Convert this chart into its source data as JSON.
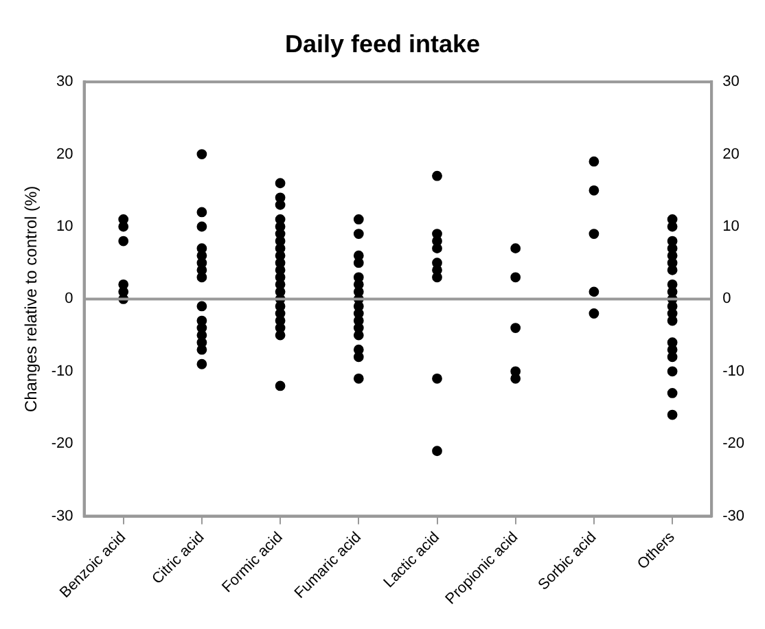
{
  "chart_data": {
    "type": "scatter",
    "title": "Daily feed intake",
    "ylabel": "Changes relative to control (%)",
    "categories": [
      "Benzoic acid",
      "Citric acid",
      "Formic acid",
      "Fumaric acid",
      "Lactic acid",
      "Propionic acid",
      "Sorbic acid",
      "Others"
    ],
    "series": [
      {
        "color": "#000000",
        "x": [
          "Benzoic acid",
          "Benzoic acid",
          "Benzoic acid",
          "Benzoic acid",
          "Benzoic acid",
          "Benzoic acid",
          "Citric acid",
          "Citric acid",
          "Citric acid",
          "Citric acid",
          "Citric acid",
          "Citric acid",
          "Citric acid",
          "Citric acid",
          "Citric acid",
          "Citric acid",
          "Citric acid",
          "Citric acid",
          "Citric acid",
          "Citric acid",
          "Citric acid",
          "Formic acid",
          "Formic acid",
          "Formic acid",
          "Formic acid",
          "Formic acid",
          "Formic acid",
          "Formic acid",
          "Formic acid",
          "Formic acid",
          "Formic acid",
          "Formic acid",
          "Formic acid",
          "Formic acid",
          "Formic acid",
          "Formic acid",
          "Formic acid",
          "Formic acid",
          "Formic acid",
          "Formic acid",
          "Formic acid",
          "Formic acid",
          "Fumaric acid",
          "Fumaric acid",
          "Fumaric acid",
          "Fumaric acid",
          "Fumaric acid",
          "Fumaric acid",
          "Fumaric acid",
          "Fumaric acid",
          "Fumaric acid",
          "Fumaric acid",
          "Fumaric acid",
          "Fumaric acid",
          "Fumaric acid",
          "Fumaric acid",
          "Fumaric acid",
          "Fumaric acid",
          "Lactic acid",
          "Lactic acid",
          "Lactic acid",
          "Lactic acid",
          "Lactic acid",
          "Lactic acid",
          "Lactic acid",
          "Lactic acid",
          "Lactic acid",
          "Propionic acid",
          "Propionic acid",
          "Propionic acid",
          "Propionic acid",
          "Propionic acid",
          "Sorbic acid",
          "Sorbic acid",
          "Sorbic acid",
          "Sorbic acid",
          "Sorbic acid",
          "Others",
          "Others",
          "Others",
          "Others",
          "Others",
          "Others",
          "Others",
          "Others",
          "Others",
          "Others",
          "Others",
          "Others",
          "Others",
          "Others",
          "Others",
          "Others",
          "Others",
          "Others",
          "Others"
        ],
        "values": [
          11,
          10,
          8,
          2,
          1,
          0,
          20,
          12,
          10,
          7,
          6,
          5,
          4,
          3,
          -1,
          -3,
          -4,
          -5,
          -6,
          -7,
          -9,
          16,
          14,
          13,
          11,
          10,
          9,
          8,
          7,
          6,
          5,
          4,
          3,
          2,
          1,
          0,
          -1,
          -2,
          -3,
          -4,
          -5,
          -12,
          11,
          9,
          6,
          5,
          3,
          2,
          1,
          0,
          -1,
          -2,
          -3,
          -4,
          -5,
          -7,
          -8,
          -11,
          17,
          9,
          8,
          7,
          5,
          4,
          3,
          -11,
          -21,
          7,
          3,
          -4,
          -10,
          -11,
          19,
          15,
          9,
          1,
          -2,
          11,
          10,
          8,
          7,
          6,
          5,
          4,
          2,
          1,
          0,
          -1,
          -2,
          -3,
          -6,
          -7,
          -8,
          -10,
          -13,
          -16
        ]
      }
    ],
    "ylim": [
      -30,
      30
    ],
    "yticks": [
      -30,
      -20,
      -10,
      0,
      10,
      20,
      30
    ],
    "y2lim": [
      -30,
      30
    ],
    "y2ticks": [
      -30,
      -20,
      -10,
      0,
      10,
      20,
      30
    ],
    "ref_lines": [
      {
        "axis": "y",
        "value": 0,
        "color": "#999999"
      }
    ],
    "marker": "circle",
    "grid": false,
    "legend": false
  }
}
